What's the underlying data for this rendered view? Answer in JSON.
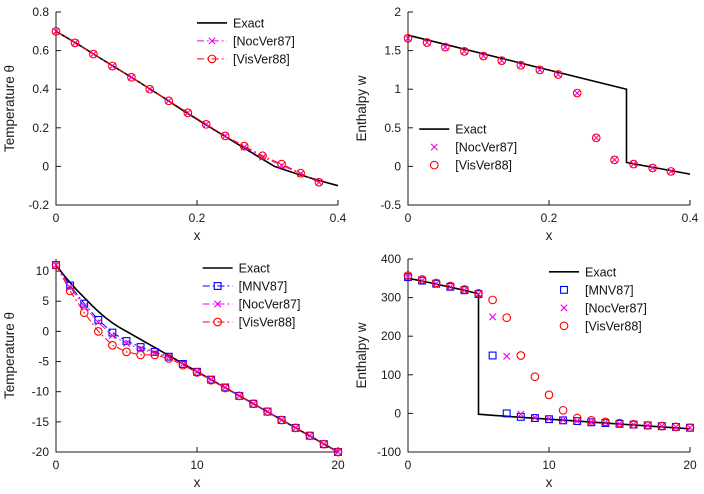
{
  "figure": {
    "background": "#ffffff"
  },
  "palette": {
    "exact": "#000000",
    "mnv87": "#0000ff",
    "nocver87": "#f000f0",
    "visver88": "#ff0000"
  },
  "chart_data": [
    {
      "type": "line",
      "title": "",
      "xlabel": "x",
      "ylabel": "Temperature θ",
      "xlim": [
        0,
        0.4
      ],
      "ylim": [
        -0.2,
        0.8
      ],
      "xticks": [
        0,
        0.2,
        0.4
      ],
      "yticks": [
        -0.2,
        0,
        0.2,
        0.4,
        0.6,
        0.8
      ],
      "legend": {
        "position": "inside-top-right",
        "anchor": [
          0.5,
          0.01
        ]
      },
      "series": [
        {
          "name": "Exact",
          "color": "#000000",
          "style": "solid",
          "marker": "none",
          "width": 1.6,
          "x": [
            0,
            0.03,
            0.06,
            0.09,
            0.12,
            0.15,
            0.18,
            0.21,
            0.24,
            0.27,
            0.3,
            0.31,
            0.34,
            0.37,
            0.4
          ],
          "y": [
            0.7,
            0.635,
            0.567,
            0.5,
            0.432,
            0.362,
            0.29,
            0.222,
            0.155,
            0.088,
            0.022,
            0.0,
            -0.037,
            -0.07,
            -0.1
          ]
        },
        {
          "name": "[NocVer87]",
          "color": "#f000f0",
          "style": "dashdot",
          "marker": "x",
          "width": 1,
          "x": [
            0,
            0.027,
            0.053,
            0.08,
            0.107,
            0.133,
            0.16,
            0.187,
            0.213,
            0.24,
            0.267,
            0.293,
            0.32,
            0.347,
            0.373
          ],
          "y": [
            0.7,
            0.64,
            0.582,
            0.52,
            0.462,
            0.4,
            0.34,
            0.278,
            0.218,
            0.158,
            0.1,
            0.048,
            0.005,
            -0.038,
            -0.082
          ]
        },
        {
          "name": "[VisVer88]",
          "color": "#ff0000",
          "style": "dashdot",
          "marker": "circle",
          "width": 1,
          "x": [
            0,
            0.027,
            0.053,
            0.08,
            0.107,
            0.133,
            0.16,
            0.187,
            0.213,
            0.24,
            0.267,
            0.293,
            0.32,
            0.347,
            0.373
          ],
          "y": [
            0.7,
            0.64,
            0.582,
            0.52,
            0.462,
            0.4,
            0.34,
            0.278,
            0.218,
            0.158,
            0.105,
            0.055,
            0.012,
            -0.035,
            -0.082
          ]
        }
      ]
    },
    {
      "type": "line",
      "title": "",
      "xlabel": "x",
      "ylabel": "Enthalpy w",
      "xlim": [
        0,
        0.4
      ],
      "ylim": [
        -0.5,
        2
      ],
      "xticks": [
        0,
        0.2,
        0.4
      ],
      "yticks": [
        -0.5,
        0,
        0.5,
        1,
        1.5,
        2
      ],
      "legend": {
        "position": "inside-left-lower",
        "anchor": [
          0.04,
          0.56
        ]
      },
      "series": [
        {
          "name": "Exact",
          "color": "#000000",
          "style": "solid",
          "marker": "none",
          "width": 1.6,
          "x": [
            0,
            0.31,
            0.31,
            0.4
          ],
          "y": [
            1.7,
            1.0,
            0.05,
            -0.1
          ]
        },
        {
          "name": "[NocVer87]",
          "color": "#f000f0",
          "style": "none",
          "marker": "x",
          "width": 1,
          "x": [
            0,
            0.027,
            0.053,
            0.08,
            0.107,
            0.133,
            0.16,
            0.187,
            0.213,
            0.24,
            0.267,
            0.293,
            0.32,
            0.347,
            0.373
          ],
          "y": [
            1.66,
            1.605,
            1.545,
            1.49,
            1.43,
            1.37,
            1.31,
            1.25,
            1.19,
            0.95,
            0.37,
            0.085,
            0.03,
            -0.02,
            -0.065
          ]
        },
        {
          "name": "[VisVer88]",
          "color": "#ff0000",
          "style": "none",
          "marker": "circle",
          "width": 1,
          "x": [
            0,
            0.027,
            0.053,
            0.08,
            0.107,
            0.133,
            0.16,
            0.187,
            0.213,
            0.24,
            0.267,
            0.293,
            0.32,
            0.347,
            0.373
          ],
          "y": [
            1.66,
            1.605,
            1.545,
            1.49,
            1.43,
            1.37,
            1.31,
            1.25,
            1.19,
            0.95,
            0.37,
            0.085,
            0.03,
            -0.02,
            -0.065
          ]
        }
      ]
    },
    {
      "type": "line",
      "title": "",
      "xlabel": "x",
      "ylabel": "Temperature θ",
      "xlim": [
        0,
        20
      ],
      "ylim": [
        -20,
        12
      ],
      "xticks": [
        0,
        10,
        20
      ],
      "yticks": [
        -20,
        -15,
        -10,
        -5,
        0,
        5,
        10
      ],
      "legend": {
        "position": "inside-top-right",
        "anchor": [
          0.52,
          0.0
        ]
      },
      "series": [
        {
          "name": "Exact",
          "color": "#000000",
          "style": "solid",
          "marker": "none",
          "width": 1.6,
          "x": [
            0,
            0.5,
            1,
            1.5,
            2,
            2.5,
            3,
            3.5,
            4,
            4.5,
            5,
            10,
            15,
            20
          ],
          "y": [
            11,
            9.5,
            8.1,
            6.8,
            5.6,
            4.4,
            3.3,
            2.3,
            1.4,
            0.65,
            0,
            -6.67,
            -13.33,
            -20
          ]
        },
        {
          "name": "[MNV87]",
          "color": "#0000ff",
          "style": "dashdot",
          "marker": "square",
          "width": 1,
          "x": [
            0,
            1,
            2,
            3,
            4,
            5,
            6,
            7,
            8,
            9,
            10,
            11,
            12,
            13,
            14,
            15,
            16,
            17,
            18,
            19,
            20
          ],
          "y": [
            11,
            7.6,
            4.6,
            1.9,
            -0.2,
            -1.6,
            -2.6,
            -3.4,
            -4.2,
            -5.4,
            -6.7,
            -8,
            -9.3,
            -10.7,
            -12,
            -13.3,
            -14.7,
            -16,
            -17.3,
            -18.7,
            -20
          ]
        },
        {
          "name": "[NocVer87]",
          "color": "#f000f0",
          "style": "dashdot",
          "marker": "x",
          "width": 1,
          "x": [
            0,
            1,
            2,
            3,
            4,
            5,
            6,
            7,
            8,
            9,
            10,
            11,
            12,
            13,
            14,
            15,
            16,
            17,
            18,
            19,
            20
          ],
          "y": [
            11,
            7.3,
            4.2,
            1.5,
            -0.7,
            -2.0,
            -2.9,
            -3.6,
            -4.3,
            -5.4,
            -6.7,
            -8,
            -9.3,
            -10.7,
            -12,
            -13.3,
            -14.7,
            -16,
            -17.3,
            -18.7,
            -20
          ]
        },
        {
          "name": "[VisVer88]",
          "color": "#ff0000",
          "style": "dashdot",
          "marker": "circle",
          "width": 1,
          "x": [
            0,
            1,
            2,
            3,
            4,
            5,
            6,
            7,
            8,
            9,
            10,
            11,
            12,
            13,
            14,
            15,
            16,
            17,
            18,
            19,
            20
          ],
          "y": [
            11,
            6.7,
            3.1,
            0.0,
            -2.3,
            -3.4,
            -3.9,
            -3.9,
            -4.5,
            -5.6,
            -6.8,
            -8.1,
            -9.4,
            -10.7,
            -12,
            -13.3,
            -14.7,
            -16,
            -17.3,
            -18.7,
            -20
          ]
        }
      ]
    },
    {
      "type": "line",
      "title": "",
      "xlabel": "x",
      "ylabel": "Enthalpy w",
      "xlim": [
        0,
        20
      ],
      "ylim": [
        -100,
        400
      ],
      "xticks": [
        0,
        10,
        20
      ],
      "yticks": [
        -100,
        0,
        100,
        200,
        300,
        400
      ],
      "legend": {
        "position": "inside-top-right",
        "anchor": [
          0.5,
          0.02
        ]
      },
      "series": [
        {
          "name": "Exact",
          "color": "#000000",
          "style": "solid",
          "marker": "none",
          "width": 1.6,
          "x": [
            0,
            1,
            2,
            3,
            4,
            5,
            5,
            6,
            8,
            10,
            12,
            14,
            16,
            18,
            20
          ],
          "y": [
            350,
            343,
            335,
            327,
            319,
            310,
            -2,
            -5,
            -10,
            -15,
            -20,
            -25,
            -30,
            -35,
            -40
          ]
        },
        {
          "name": "[MNV87]",
          "color": "#0000ff",
          "style": "none",
          "marker": "square",
          "width": 1,
          "x": [
            0,
            1,
            2,
            3,
            4,
            5,
            6,
            7,
            8,
            9,
            10,
            11,
            12,
            13,
            14,
            15,
            16,
            17,
            18,
            19,
            20
          ],
          "y": [
            353,
            344,
            336,
            328,
            319,
            309,
            150,
            0,
            -9,
            -12,
            -15,
            -18,
            -20,
            -23,
            -25,
            -27,
            -29,
            -31,
            -33,
            -35,
            -37
          ]
        },
        {
          "name": "[NocVer87]",
          "color": "#f000f0",
          "style": "none",
          "marker": "x",
          "width": 1,
          "x": [
            0,
            1,
            2,
            3,
            4,
            5,
            6,
            7,
            8,
            9,
            10,
            11,
            12,
            13,
            14,
            15,
            16,
            17,
            18,
            19,
            20
          ],
          "y": [
            353,
            344,
            336,
            328,
            319,
            309,
            250,
            148,
            -2,
            -11,
            -14,
            -17,
            -20,
            -22,
            -24,
            -27,
            -29,
            -31,
            -33,
            -35,
            -37
          ]
        },
        {
          "name": "[VisVer88]",
          "color": "#ff0000",
          "style": "none",
          "marker": "circle",
          "width": 1,
          "x": [
            0,
            1,
            2,
            3,
            4,
            5,
            6,
            7,
            8,
            9,
            10,
            11,
            12,
            13,
            14,
            15,
            16,
            17,
            18,
            19,
            20
          ],
          "y": [
            357,
            347,
            338,
            330,
            321,
            311,
            294,
            248,
            150,
            95,
            48,
            8,
            -12,
            -18,
            -22,
            -25,
            -28,
            -31,
            -33,
            -35,
            -37
          ]
        }
      ]
    }
  ]
}
